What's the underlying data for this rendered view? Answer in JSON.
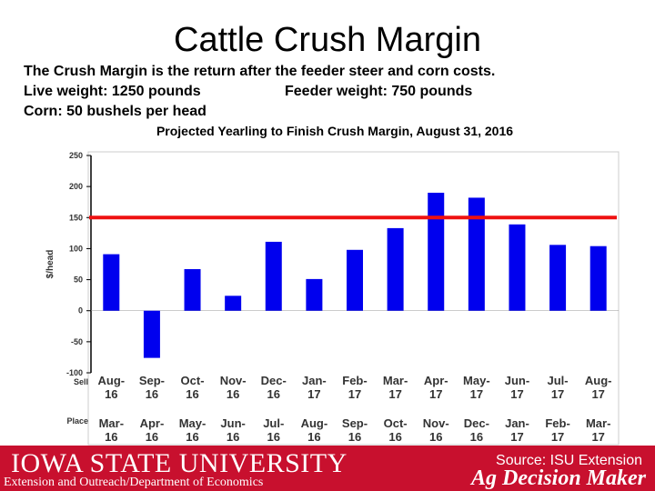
{
  "slide": {
    "title": "Cattle Crush Margin",
    "line1": "The Crush Margin is the return after the feeder steer and corn costs.",
    "line2_left": "Live weight:  1250 pounds",
    "line2_right": "Feeder weight:  750 pounds",
    "line3": "Corn:  50 bushels per head"
  },
  "chart_data": {
    "type": "bar",
    "title": "Projected Yearling to Finish Crush Margin, August 31, 2016",
    "ylabel": "$/head",
    "ylim": [
      -100,
      250
    ],
    "yticks": [
      250,
      200,
      150,
      100,
      50,
      0,
      -50,
      -100
    ],
    "reference_line": 150,
    "row_labels": {
      "sell": "Sell",
      "place": "Place"
    },
    "categories": [
      {
        "sell": "Aug-16",
        "place": "Mar-16"
      },
      {
        "sell": "Sep-16",
        "place": "Apr-16"
      },
      {
        "sell": "Oct-16",
        "place": "May-16"
      },
      {
        "sell": "Nov-16",
        "place": "Jun-16"
      },
      {
        "sell": "Dec-16",
        "place": "Jul-16"
      },
      {
        "sell": "Jan-17",
        "place": "Aug-16"
      },
      {
        "sell": "Feb-17",
        "place": "Sep-16"
      },
      {
        "sell": "Mar-17",
        "place": "Oct-16"
      },
      {
        "sell": "Apr-17",
        "place": "Nov-16"
      },
      {
        "sell": "May-17",
        "place": "Dec-16"
      },
      {
        "sell": "Jun-17",
        "place": "Jan-17"
      },
      {
        "sell": "Jul-17",
        "place": "Feb-17"
      },
      {
        "sell": "Aug-17",
        "place": "Mar-17"
      }
    ],
    "values": [
      91,
      -76,
      67,
      24,
      111,
      51,
      98,
      133,
      190,
      182,
      139,
      106,
      104
    ],
    "colors": {
      "bar": "#0000ee",
      "reference": "#ee1111",
      "axis": "#000000"
    }
  },
  "footer": {
    "university": "IOWA STATE UNIVERSITY",
    "department": "Extension and Outreach/Department of Economics",
    "source": "Source: ISU Extension",
    "brand": "Ag Decision Maker",
    "color": "#c8102e"
  }
}
